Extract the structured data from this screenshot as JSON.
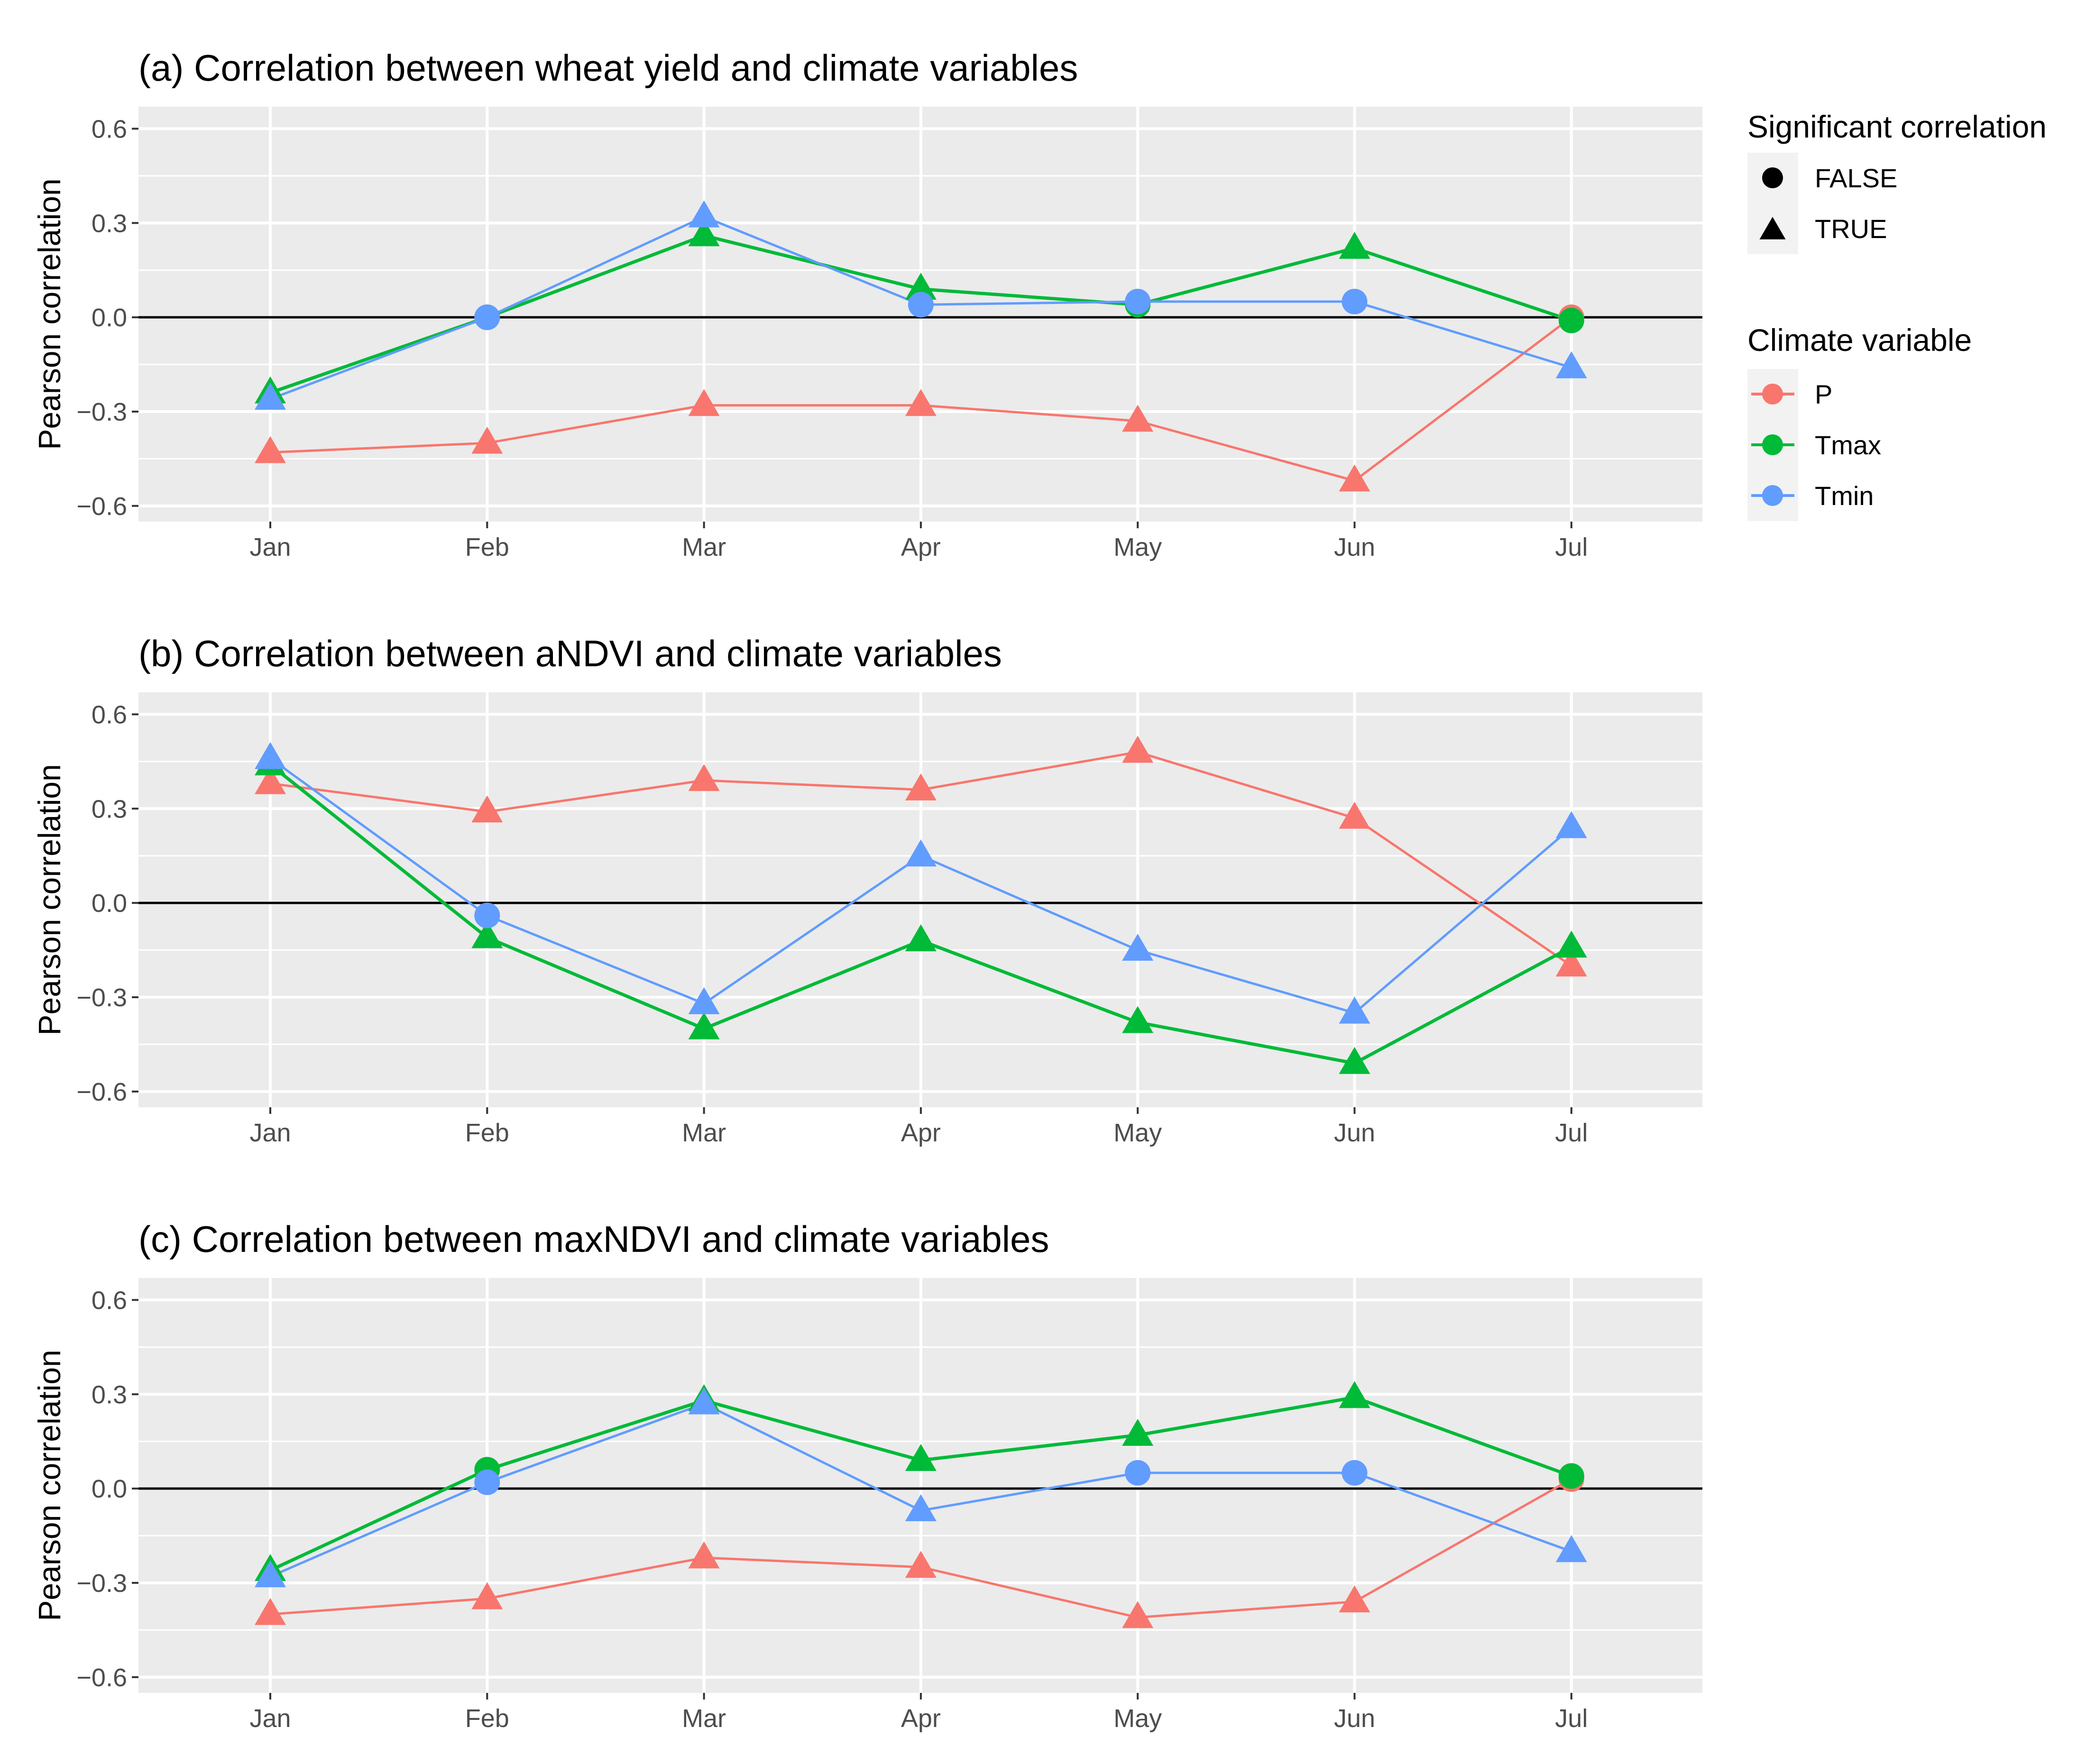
{
  "chart_data": [
    {
      "type": "line",
      "title": "(a) Correlation between wheat yield and climate variables",
      "xlabel": "",
      "ylabel": "Pearson correlation",
      "categories": [
        "Jan",
        "Feb",
        "Mar",
        "Apr",
        "May",
        "Jun",
        "Jul"
      ],
      "yticks": [
        "0.6",
        "0.3",
        "0.0",
        "-0.3",
        "-0.6"
      ],
      "ylim": [
        -0.65,
        0.67
      ],
      "grid": true,
      "zero_line": true,
      "series": [
        {
          "name": "P",
          "values": [
            -0.43,
            -0.4,
            -0.28,
            -0.28,
            -0.33,
            -0.52,
            0.0
          ],
          "significant": [
            true,
            true,
            true,
            true,
            true,
            true,
            false
          ]
        },
        {
          "name": "Tmax",
          "values": [
            -0.24,
            0.0,
            0.26,
            0.09,
            0.04,
            0.22,
            -0.01
          ],
          "significant": [
            true,
            false,
            true,
            true,
            false,
            true,
            false
          ]
        },
        {
          "name": "Tmin",
          "values": [
            -0.26,
            0.0,
            0.32,
            0.04,
            0.05,
            0.05,
            -0.16
          ],
          "significant": [
            true,
            false,
            true,
            false,
            false,
            false,
            true
          ]
        }
      ]
    },
    {
      "type": "line",
      "title": "(b) Correlation between aNDVI and climate variables",
      "xlabel": "",
      "ylabel": "Pearson correlation",
      "categories": [
        "Jan",
        "Feb",
        "Mar",
        "Apr",
        "May",
        "Jun",
        "Jul"
      ],
      "yticks": [
        "0.6",
        "0.3",
        "0.0",
        "-0.3",
        "-0.6"
      ],
      "ylim": [
        -0.65,
        0.67
      ],
      "grid": true,
      "zero_line": true,
      "series": [
        {
          "name": "P",
          "values": [
            0.38,
            0.29,
            0.39,
            0.36,
            0.48,
            0.27,
            -0.2
          ],
          "significant": [
            true,
            true,
            true,
            true,
            true,
            true,
            true
          ]
        },
        {
          "name": "Tmax",
          "values": [
            0.44,
            -0.11,
            -0.4,
            -0.12,
            -0.38,
            -0.51,
            -0.14
          ],
          "significant": [
            true,
            true,
            true,
            true,
            true,
            true,
            true
          ]
        },
        {
          "name": "Tmin",
          "values": [
            0.46,
            -0.04,
            -0.32,
            0.15,
            -0.15,
            -0.35,
            0.24
          ],
          "significant": [
            true,
            false,
            true,
            true,
            true,
            true,
            true
          ]
        }
      ]
    },
    {
      "type": "line",
      "title": "(c) Correlation between maxNDVI and climate variables",
      "xlabel": "",
      "ylabel": "Pearson correlation",
      "categories": [
        "Jan",
        "Feb",
        "Mar",
        "Apr",
        "May",
        "Jun",
        "Jul"
      ],
      "yticks": [
        "0.6",
        "0.3",
        "0.0",
        "-0.3",
        "-0.6"
      ],
      "ylim": [
        -0.65,
        0.67
      ],
      "grid": true,
      "zero_line": true,
      "series": [
        {
          "name": "P",
          "values": [
            -0.4,
            -0.35,
            -0.22,
            -0.25,
            -0.41,
            -0.36,
            0.03
          ],
          "significant": [
            true,
            true,
            true,
            true,
            true,
            true,
            false
          ]
        },
        {
          "name": "Tmax",
          "values": [
            -0.26,
            0.06,
            0.28,
            0.09,
            0.17,
            0.29,
            0.04
          ],
          "significant": [
            true,
            false,
            true,
            true,
            true,
            true,
            false
          ]
        },
        {
          "name": "Tmin",
          "values": [
            -0.28,
            0.02,
            0.27,
            -0.07,
            0.05,
            0.05,
            -0.2
          ],
          "significant": [
            true,
            false,
            true,
            true,
            false,
            false,
            true
          ]
        }
      ]
    }
  ],
  "legend": {
    "shape_title": "Significant correlation",
    "shape_items": [
      {
        "label": "FALSE",
        "shape": "circle"
      },
      {
        "label": "TRUE",
        "shape": "triangle"
      }
    ],
    "color_title": "Climate variable",
    "color_items": [
      {
        "label": "P",
        "color": "#F8766D"
      },
      {
        "label": "Tmax",
        "color": "#00BA38"
      },
      {
        "label": "Tmin",
        "color": "#619CFF"
      }
    ]
  },
  "colors": {
    "panel_bg": "#EBEBEB",
    "grid": "#FFFFFF",
    "zero_line": "#000000",
    "P": "#F8766D",
    "Tmax": "#00BA38",
    "Tmin": "#619CFF"
  }
}
